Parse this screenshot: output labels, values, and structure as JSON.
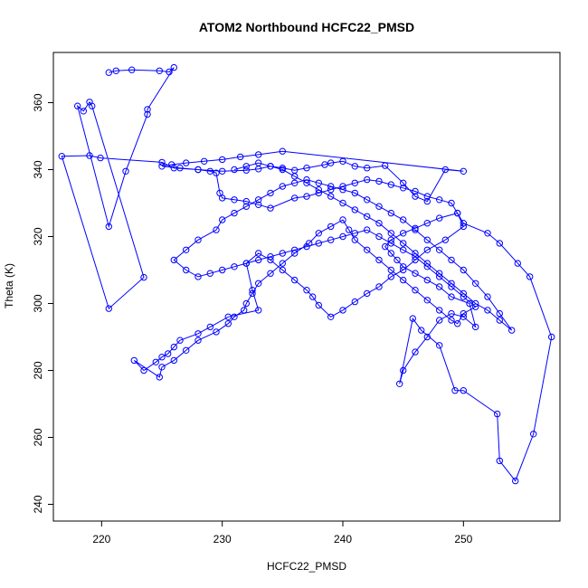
{
  "chart_data": {
    "type": "line",
    "title": "ATOM2 Northbound HCFC22_PMSD",
    "xlabel": "HCFC22_PMSD",
    "ylabel": "Theta (K)",
    "xlim": [
      216,
      258
    ],
    "ylim": [
      235,
      375
    ],
    "x_ticks": [
      220,
      230,
      240,
      250
    ],
    "y_ticks": [
      240,
      260,
      280,
      300,
      320,
      340,
      360
    ],
    "grid": false,
    "legend": "none",
    "colors": {
      "series": "#0000ff",
      "frame": "#000000"
    },
    "series": [
      {
        "marker": "open-circle",
        "x": [
          220.6,
          221.2,
          222.5,
          224.8,
          225.6,
          226.0,
          223.8,
          223.8,
          222.0,
          220.6,
          218.0,
          218.5,
          219.0,
          219.2,
          223.5,
          220.6,
          216.7,
          219.0,
          219.9,
          225.0,
          226.0,
          228.0,
          230.0,
          232.0,
          233.0,
          234.0,
          235.0,
          236.0,
          237.0,
          238.5,
          239.0,
          240.0,
          241.0,
          242.0,
          243.5,
          245.0,
          246.0,
          247.0,
          248.5,
          250.0,
          235.0,
          233.0,
          231.5,
          230.0,
          228.5,
          227.0,
          225.8,
          225.0,
          226.5,
          228.0,
          229.0,
          229.5,
          229.8,
          230.0,
          231.0,
          232.0,
          233.0,
          234.0,
          236.0,
          237.0,
          238.0,
          239.0,
          240.0,
          241.0,
          242.0,
          243.0,
          244.0,
          245.0,
          246.0,
          247.0,
          248.0,
          249.0,
          249.5,
          250.0,
          252.0,
          253.0,
          254.5,
          255.5,
          257.3,
          255.8,
          254.3,
          253.0,
          252.8,
          250.0,
          249.3,
          248.0,
          246.5,
          245.8,
          244.7,
          245.0,
          246.0,
          247.0,
          248.0,
          249.0,
          250.0,
          251.0,
          250.5,
          249.0,
          248.0,
          247.0,
          246.0,
          245.0,
          244.5,
          244.0,
          243.5,
          244.0,
          245.0,
          246.0,
          247.0,
          248.0,
          249.5,
          250.0,
          248.5,
          247.0,
          246.0,
          245.0,
          244.0,
          243.0,
          242.0,
          241.0,
          240.0,
          239.0,
          238.0,
          237.5,
          237.0,
          236.0,
          235.0,
          234.0,
          233.0,
          232.0,
          232.5,
          233.0,
          230.5,
          229.0,
          228.0,
          226.5,
          226.0,
          225.5,
          225.0,
          224.5,
          223.5,
          222.7,
          224.8,
          225.0,
          226.0,
          227.0,
          228.0,
          229.5,
          230.5,
          231.0,
          231.8,
          232.0,
          232.5,
          233.0,
          234.0,
          235.0,
          236.0,
          237.2,
          238.0,
          239.0,
          240.0,
          240.5,
          241.0,
          242.0,
          243.0,
          244.0,
          245.0,
          246.0,
          247.0,
          248.0,
          249.0,
          249.5,
          250.0,
          251.0,
          250.0,
          249.0,
          248.0,
          247.0,
          246.0,
          245.0,
          244.0,
          243.0,
          242.0,
          241.0,
          240.0,
          239.0,
          238.0,
          237.0,
          236.0,
          235.0,
          234.0,
          233.0,
          232.0,
          231.0,
          230.0,
          229.0,
          228.0,
          227.0,
          226.0,
          227.0,
          228.0,
          229.5,
          230.0,
          231.0,
          232.0,
          233.0,
          234.0,
          235.0,
          236.0,
          237.0,
          238.0,
          239.0,
          240.0,
          241.0,
          242.0,
          243.0,
          244.0,
          245.0,
          246.0,
          247.0,
          248.0,
          249.0,
          250.0,
          251.0,
          252.0,
          253.0,
          254.0,
          253.0,
          252.0,
          251.0,
          250.0,
          249.0,
          248.0,
          247.0,
          246.0,
          245.0,
          244.0,
          243.0,
          242.0,
          241.0,
          240.0,
          239.0,
          238.0,
          237.0,
          236.0,
          235.0,
          234.0,
          233.0,
          232.0,
          231.0
        ],
        "y": [
          369.0,
          369.5,
          369.8,
          369.5,
          369.2,
          370.5,
          358.0,
          356.5,
          339.5,
          323.0,
          359.0,
          357.5,
          360.2,
          359.0,
          307.8,
          298.5,
          344.0,
          344.2,
          343.5,
          342.2,
          340.5,
          340.0,
          339.5,
          339.8,
          340.2,
          341.0,
          340.5,
          339.8,
          340.5,
          341.5,
          342.0,
          342.5,
          341.0,
          340.5,
          341.2,
          336.0,
          332.0,
          330.5,
          340.0,
          339.5,
          345.5,
          344.5,
          343.8,
          343.0,
          342.5,
          342.0,
          341.5,
          341.0,
          340.5,
          340.0,
          339.5,
          339.0,
          333.0,
          331.5,
          331.0,
          330.5,
          329.5,
          328.5,
          331.5,
          332.0,
          333.0,
          334.0,
          335.0,
          336.0,
          337.0,
          336.5,
          335.5,
          334.5,
          333.5,
          332.0,
          331.0,
          330.0,
          327.0,
          324.0,
          321.0,
          318.0,
          312.0,
          308.0,
          290.0,
          261.0,
          247.0,
          253.0,
          267.0,
          274.0,
          274.0,
          287.5,
          292.0,
          295.5,
          276.0,
          280.0,
          285.5,
          290.0,
          295.0,
          297.0,
          296.0,
          293.0,
          300.0,
          302.0,
          305.0,
          307.0,
          309.0,
          311.0,
          313.0,
          315.0,
          317.0,
          319.0,
          321.0,
          322.5,
          324.0,
          325.5,
          327.0,
          323.0,
          319.0,
          316.0,
          313.0,
          310.0,
          308.0,
          305.0,
          303.0,
          300.5,
          298.0,
          296.0,
          299.5,
          302.0,
          304.0,
          307.0,
          310.0,
          313.0,
          315.0,
          312.0,
          304.0,
          298.0,
          296.0,
          293.0,
          291.0,
          289.0,
          287.0,
          285.0,
          284.0,
          282.5,
          280.0,
          283.0,
          278.0,
          281.0,
          283.0,
          286.0,
          289.0,
          291.5,
          294.0,
          296.0,
          298.0,
          300.0,
          303.0,
          306.0,
          309.0,
          312.0,
          315.0,
          318.0,
          321.0,
          323.0,
          325.0,
          322.0,
          319.0,
          316.0,
          313.0,
          310.0,
          307.0,
          304.0,
          301.0,
          298.0,
          295.0,
          294.0,
          297.0,
          299.0,
          302.0,
          305.0,
          308.0,
          311.0,
          314.0,
          316.0,
          318.0,
          320.0,
          322.0,
          321.0,
          320.0,
          319.0,
          318.0,
          317.0,
          316.0,
          315.0,
          314.0,
          313.0,
          312.0,
          311.0,
          310.0,
          309.0,
          308.0,
          310.0,
          313.0,
          316.0,
          319.0,
          322.0,
          325.0,
          327.0,
          329.0,
          331.0,
          333.0,
          335.0,
          336.0,
          337.0,
          336.0,
          335.0,
          334.0,
          333.0,
          331.0,
          329.0,
          327.0,
          325.0,
          322.0,
          319.0,
          316.0,
          313.0,
          310.0,
          306.0,
          302.0,
          297.0,
          292.0,
          295.0,
          298.0,
          300.0,
          303.0,
          306.0,
          309.0,
          312.0,
          315.0,
          318.0,
          321.0,
          324.0,
          326.0,
          328.0,
          330.0,
          332.0,
          334.0,
          336.0,
          338.0,
          340.0,
          341.0,
          342.0,
          341.0,
          340.0
        ]
      }
    ]
  }
}
